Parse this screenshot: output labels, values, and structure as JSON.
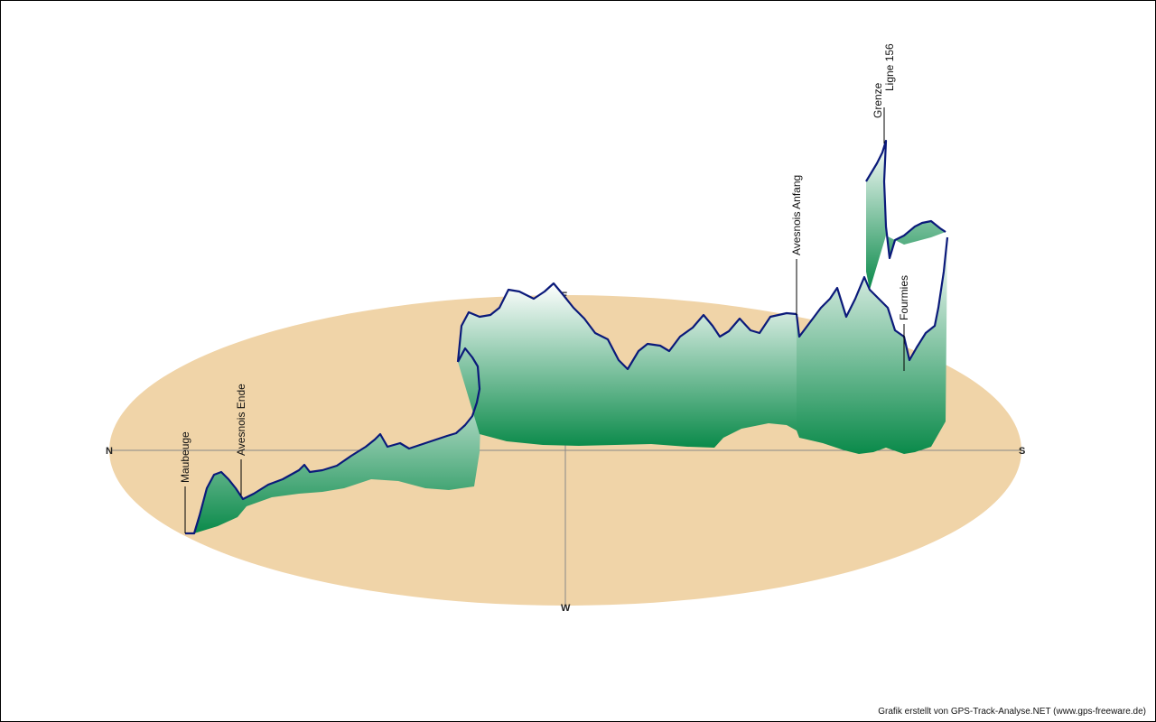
{
  "chart_data": {
    "type": "area",
    "style": "3d track elevation profile over compass ellipse",
    "compass": {
      "north": "N",
      "south": "S",
      "east": "E",
      "west": "W"
    },
    "waypoints": [
      {
        "name": "Maubeuge"
      },
      {
        "name": "Avesnois Ende"
      },
      {
        "name": "Avesnois Anfang"
      },
      {
        "name": "Grenze"
      },
      {
        "name": "Ligne 156"
      },
      {
        "name": "Fourmies"
      }
    ],
    "colors": {
      "ellipse_fill": "#f0d4a8",
      "profile_line": "#0b1a7a",
      "wall_top": "#ffffff",
      "wall_bottom": "#0a8a4a",
      "axis_line": "#888888"
    },
    "grid": false,
    "legend": "none"
  },
  "credit": "Grafik erstellt von GPS-Track-Analyse.NET (www.gps-freeware.de)"
}
